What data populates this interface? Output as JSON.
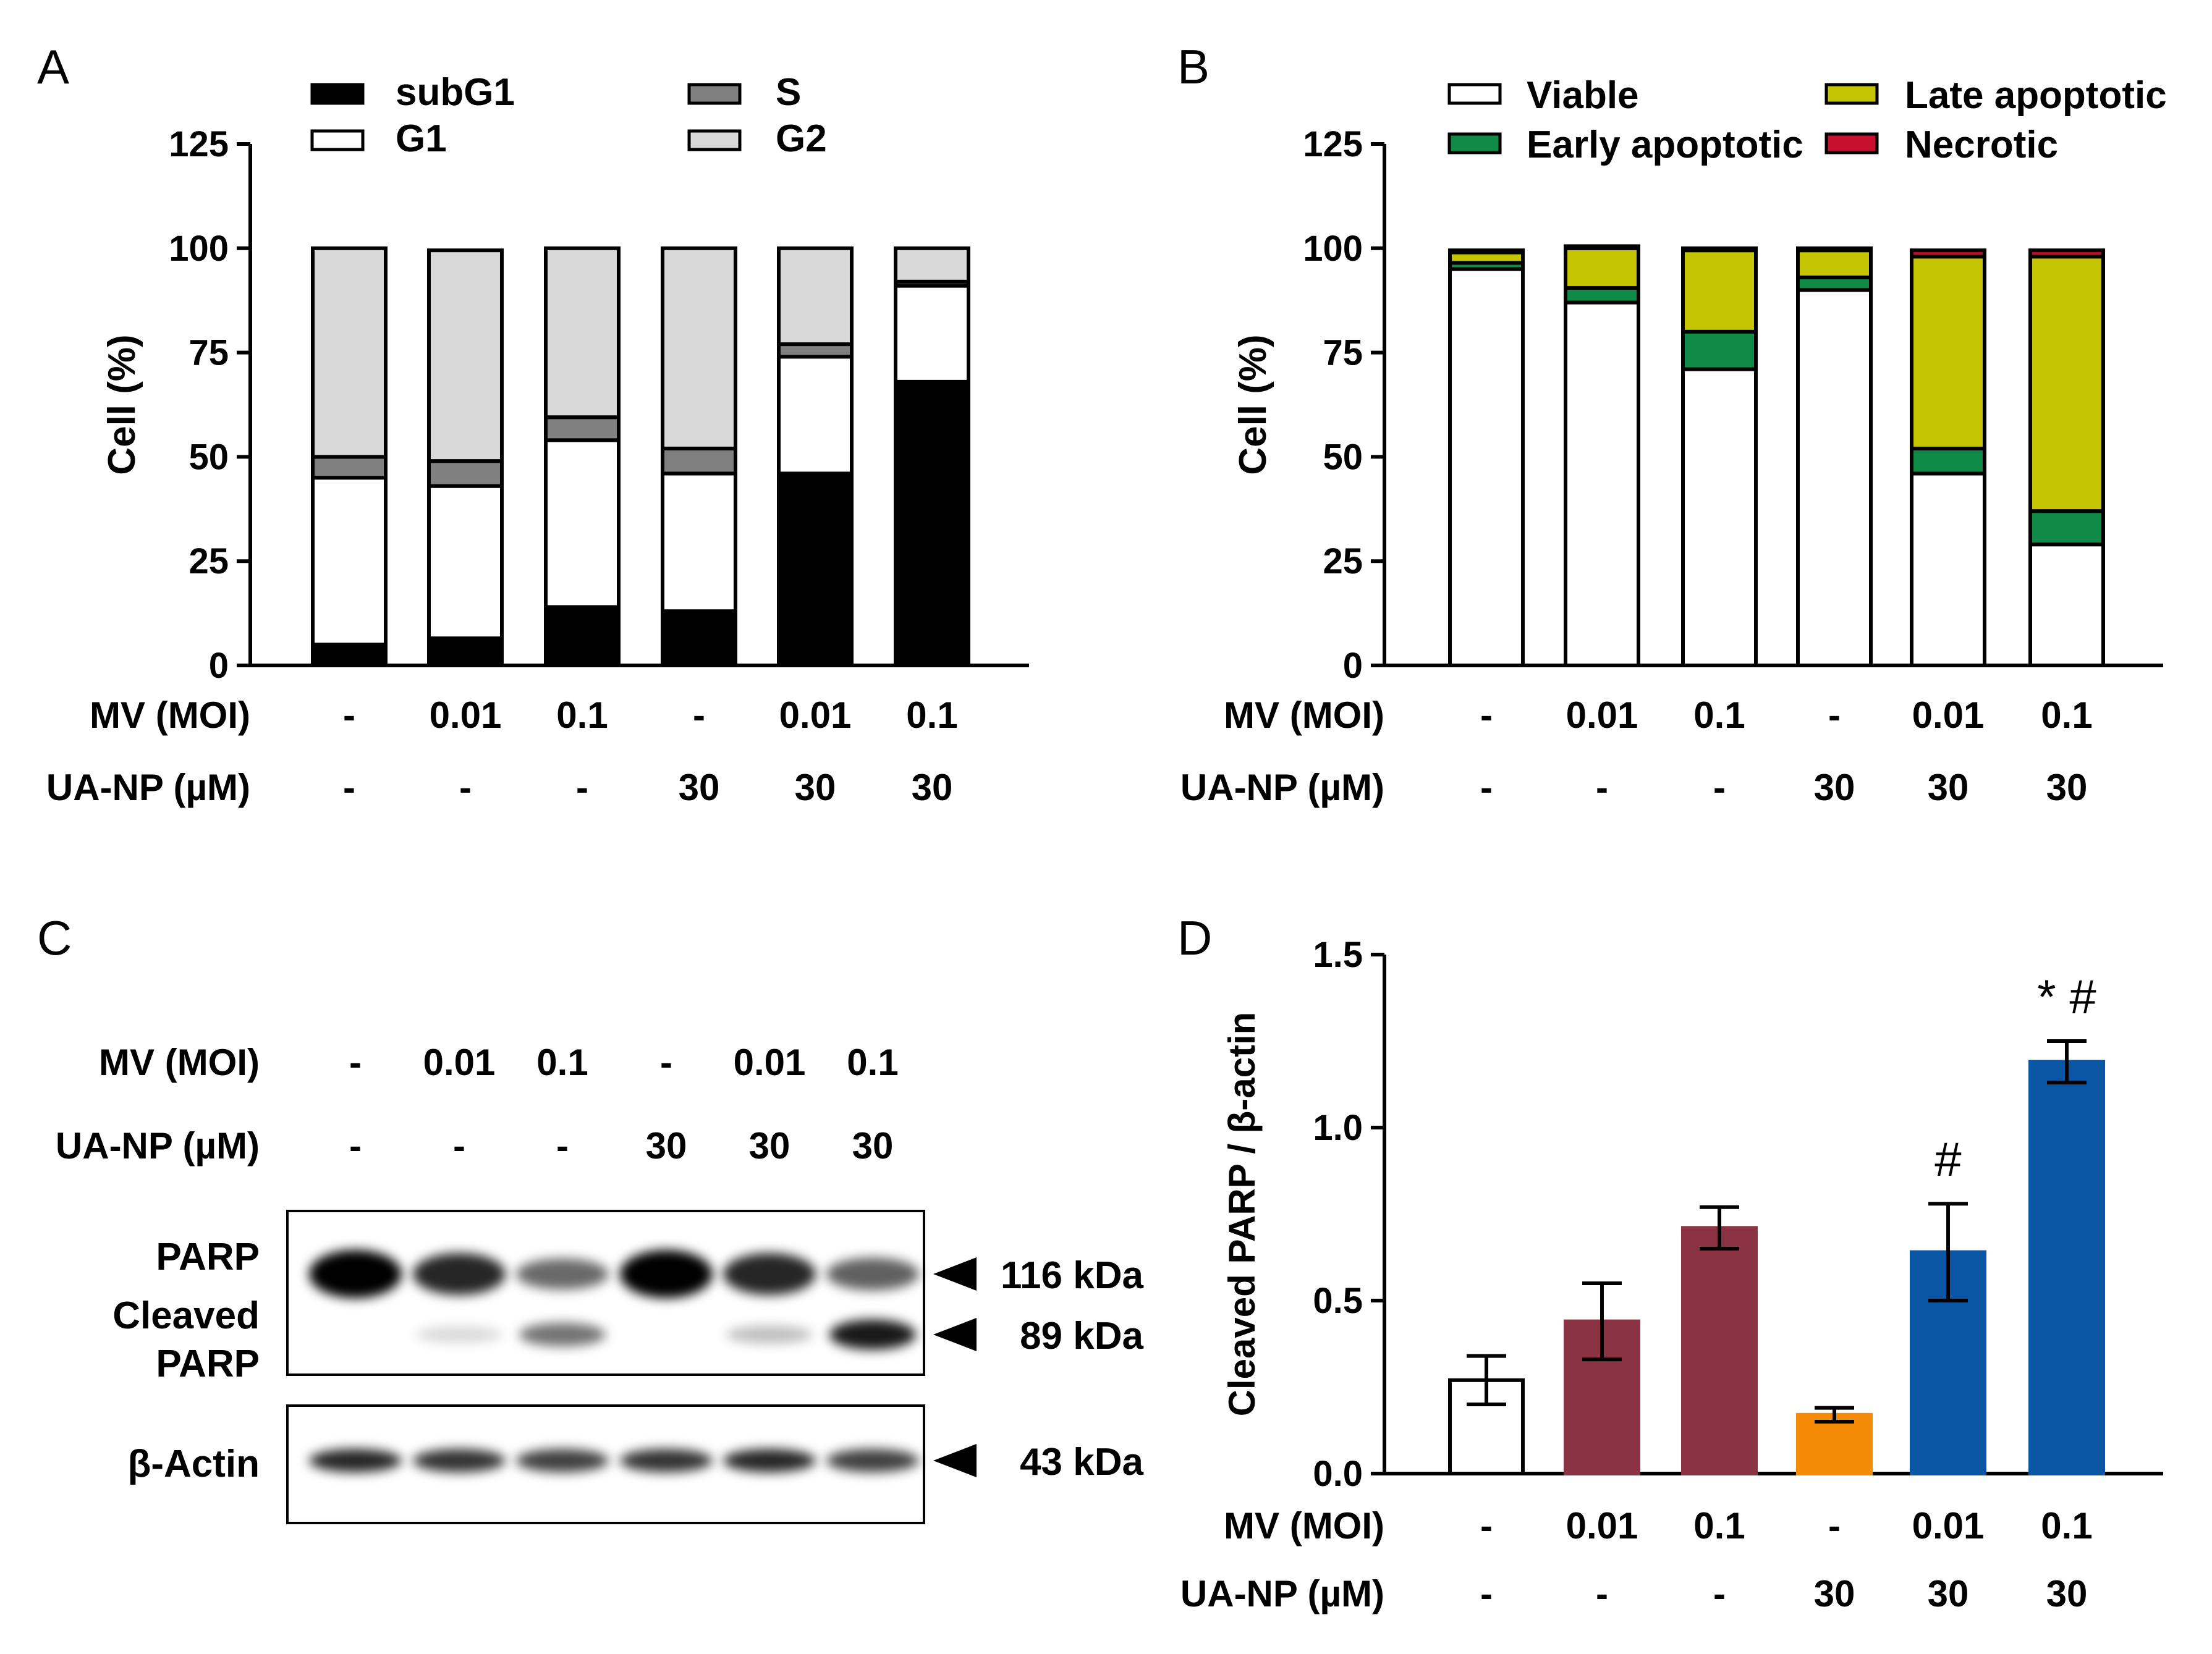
{
  "chart_data": [
    {
      "panel": "A",
      "type": "bar",
      "stacked": true,
      "ylabel": "Cell (%)",
      "ylim": [
        0,
        125
      ],
      "yticks": [
        "0",
        "25",
        "50",
        "75",
        "100",
        "125"
      ],
      "legend": [
        "subG1",
        "S",
        "G1",
        "G2"
      ],
      "mv_label": "MV (MOI)",
      "ua_label": "UA-NP (µM)",
      "mv": [
        "-",
        "0.01",
        "0.1",
        "-",
        "0.01",
        "0.1"
      ],
      "ua": [
        "-",
        "-",
        "-",
        "30",
        "30",
        "30"
      ],
      "series": [
        {
          "name": "subG1",
          "color": "#000000",
          "values": [
            5,
            6.5,
            14,
            13,
            46,
            68
          ]
        },
        {
          "name": "G1",
          "color": "#ffffff",
          "values": [
            40,
            36.5,
            40,
            33,
            28,
            23
          ]
        },
        {
          "name": "S",
          "color": "#808080",
          "values": [
            5,
            6,
            5.5,
            6,
            3,
            1
          ]
        },
        {
          "name": "G2",
          "color": "#d9d9d9",
          "values": [
            50,
            50.5,
            40.5,
            48,
            23,
            8
          ]
        }
      ]
    },
    {
      "panel": "B",
      "type": "bar",
      "stacked": true,
      "ylabel": "Cell (%)",
      "ylim": [
        0,
        125
      ],
      "yticks": [
        "0",
        "25",
        "50",
        "75",
        "100",
        "125"
      ],
      "legend": [
        "Viable",
        "Late apoptotic",
        "Early apoptotic",
        "Necrotic"
      ],
      "mv_label": "MV (MOI)",
      "ua_label": "UA-NP (µM)",
      "mv": [
        "-",
        "0.01",
        "0.1",
        "-",
        "0.01",
        "0.1"
      ],
      "ua": [
        "-",
        "-",
        "-",
        "30",
        "30",
        "30"
      ],
      "series": [
        {
          "name": "Viable",
          "color": "#ffffff",
          "values": [
            95,
            87,
            71,
            90,
            46,
            29
          ]
        },
        {
          "name": "Early apoptotic",
          "color": "#0f8a47",
          "values": [
            1.5,
            3.5,
            9,
            3,
            6,
            8
          ]
        },
        {
          "name": "Late apoptotic",
          "color": "#c4c400",
          "values": [
            2.5,
            9.5,
            19.5,
            6.5,
            46,
            61
          ]
        },
        {
          "name": "Necrotic",
          "color": "#c8102e",
          "values": [
            0.5,
            0.5,
            0.5,
            0.5,
            1.5,
            1.5
          ]
        }
      ]
    },
    {
      "panel": "D",
      "type": "bar",
      "ylabel": "Cleaved PARP / β-actin",
      "ylim": [
        0,
        1.5
      ],
      "yticks": [
        "0.0",
        "0.5",
        "1.0",
        "1.5"
      ],
      "mv_label": "MV (MOI)",
      "ua_label": "UA-NP (µM)",
      "mv": [
        "-",
        "0.01",
        "0.1",
        "-",
        "0.01",
        "0.1"
      ],
      "ua": [
        "-",
        "-",
        "-",
        "30",
        "30",
        "30"
      ],
      "values": [
        0.27,
        0.44,
        0.71,
        0.17,
        0.64,
        1.19
      ],
      "errors": [
        0.07,
        0.11,
        0.06,
        0.02,
        0.14,
        0.06
      ],
      "colors": [
        "#ffffff",
        "#8b3342",
        "#8b3342",
        "#f58a07",
        "#0b56a4",
        "#0b56a4"
      ],
      "annotations": [
        "",
        "",
        "",
        "",
        "#",
        "* #"
      ]
    }
  ],
  "panels": {
    "a": "A",
    "b": "B",
    "c": "C",
    "d": "D"
  },
  "blot": {
    "mv_label": "MV (MOI)",
    "ua_label": "UA-NP (µM)",
    "mv": [
      "-",
      "0.01",
      "0.1",
      "-",
      "0.01",
      "0.1"
    ],
    "ua": [
      "-",
      "-",
      "-",
      "30",
      "30",
      "30"
    ],
    "parp_label": "PARP",
    "cleaved_label_1": "Cleaved",
    "cleaved_label_2": "PARP",
    "actin_label": "β-Actin",
    "kda_116": "116 kDa",
    "kda_89": "89 kDa",
    "kda_43": "43 kDa",
    "parp_intensity": [
      1.0,
      0.8,
      0.45,
      1.0,
      0.8,
      0.5
    ],
    "cleaved_intensity": [
      0.0,
      0.15,
      0.55,
      0.0,
      0.25,
      0.9
    ],
    "actin_intensity": [
      0.85,
      0.8,
      0.75,
      0.8,
      0.85,
      0.75
    ]
  }
}
